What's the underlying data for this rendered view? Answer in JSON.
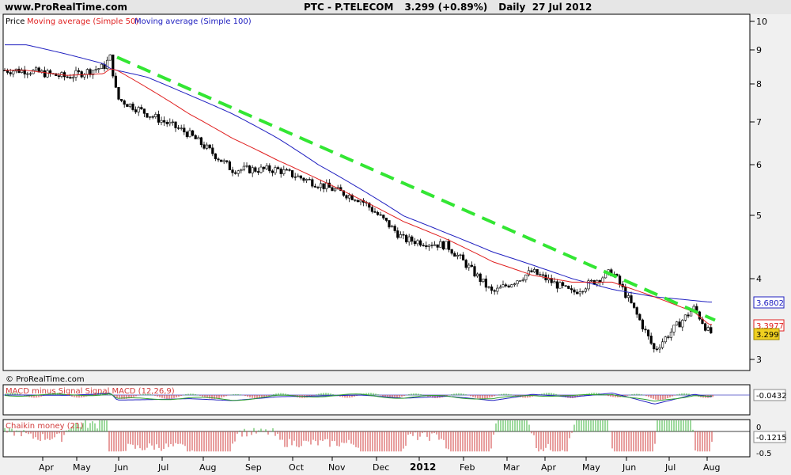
{
  "header": {
    "site": "www.ProRealTime.com",
    "symbol": "PTC - P.TELECOM",
    "price": "3.299 (+0.89%)",
    "period": "Daily  27 Jul 2012"
  },
  "price_panel": {
    "legend_price": "Price",
    "legend_ma50": "Moving average (Simple 50)",
    "legend_ma100": "Moving average (Simple 100)",
    "copyright": "© ProRealTime.com",
    "badge_ma100": "3.6802",
    "badge_ma50": "3.3977",
    "badge_last": "3.299",
    "y_ticks": [
      "10",
      "9",
      "8",
      "7",
      "6",
      "5",
      "4",
      "3"
    ]
  },
  "macd_panel": {
    "legend": "MACD minus Signal Signal MACD (12,26,9)",
    "badge": "-0.0432",
    "y_ticks": [
      "0"
    ]
  },
  "chaikin_panel": {
    "legend": "Chaikin money (21)",
    "badge": "-0.1215",
    "y_ticks": [
      "0",
      "-0.5"
    ]
  },
  "x_axis": {
    "labels": [
      "Apr",
      "May",
      "Jun",
      "Jul",
      "Aug",
      "Sep",
      "Oct",
      "Nov",
      "Dec",
      "2012",
      "Feb",
      "Mar",
      "Apr",
      "May",
      "Jun",
      "Jul",
      "Aug"
    ]
  },
  "colors": {
    "ma50": "#e02020",
    "ma100": "#2020c0",
    "trendline": "#33e633",
    "up_candle": "#ffffff",
    "down_candle": "#000000",
    "hist_pos": "#3cb43c",
    "hist_neg": "#d23c3c",
    "last_badge": "#f0d020"
  },
  "chart_data": {
    "type": "line",
    "title": "PTC - P.TELECOM",
    "scale": "log",
    "ylim": [
      2.8,
      10.2
    ],
    "x": [
      "2011-03",
      "2011-04",
      "2011-05",
      "2011-05-20",
      "2011-05-25",
      "2011-06",
      "2011-07",
      "2011-08",
      "2011-09",
      "2011-10",
      "2011-11",
      "2011-12",
      "2012-01",
      "2012-02",
      "2012-03",
      "2012-04",
      "2012-05",
      "2012-06",
      "2012-07",
      "2012-07-27"
    ],
    "series": [
      {
        "name": "Price",
        "values": [
          8.4,
          8.2,
          8.5,
          8.8,
          7.6,
          7.2,
          6.7,
          5.9,
          5.9,
          5.6,
          5.3,
          4.6,
          4.5,
          3.8,
          4.1,
          3.8,
          4.1,
          3.1,
          3.6,
          3.299
        ]
      },
      {
        "name": "Moving average (Simple 50)",
        "values": [
          8.4,
          8.25,
          8.3,
          8.45,
          8.4,
          7.9,
          7.2,
          6.6,
          6.1,
          5.7,
          5.3,
          4.9,
          4.6,
          4.25,
          4.05,
          3.95,
          3.95,
          3.75,
          3.55,
          3.3977
        ]
      },
      {
        "name": "Moving average (Simple 100)",
        "values": [
          9.2,
          8.9,
          8.6,
          8.45,
          8.4,
          8.2,
          7.7,
          7.2,
          6.6,
          6.0,
          5.5,
          5.0,
          4.7,
          4.4,
          4.2,
          4.0,
          3.85,
          3.75,
          3.7,
          3.6802
        ]
      }
    ],
    "trendline": {
      "from": [
        "2011-05-25",
        8.8
      ],
      "to": [
        "2012-08",
        3.45
      ]
    }
  }
}
